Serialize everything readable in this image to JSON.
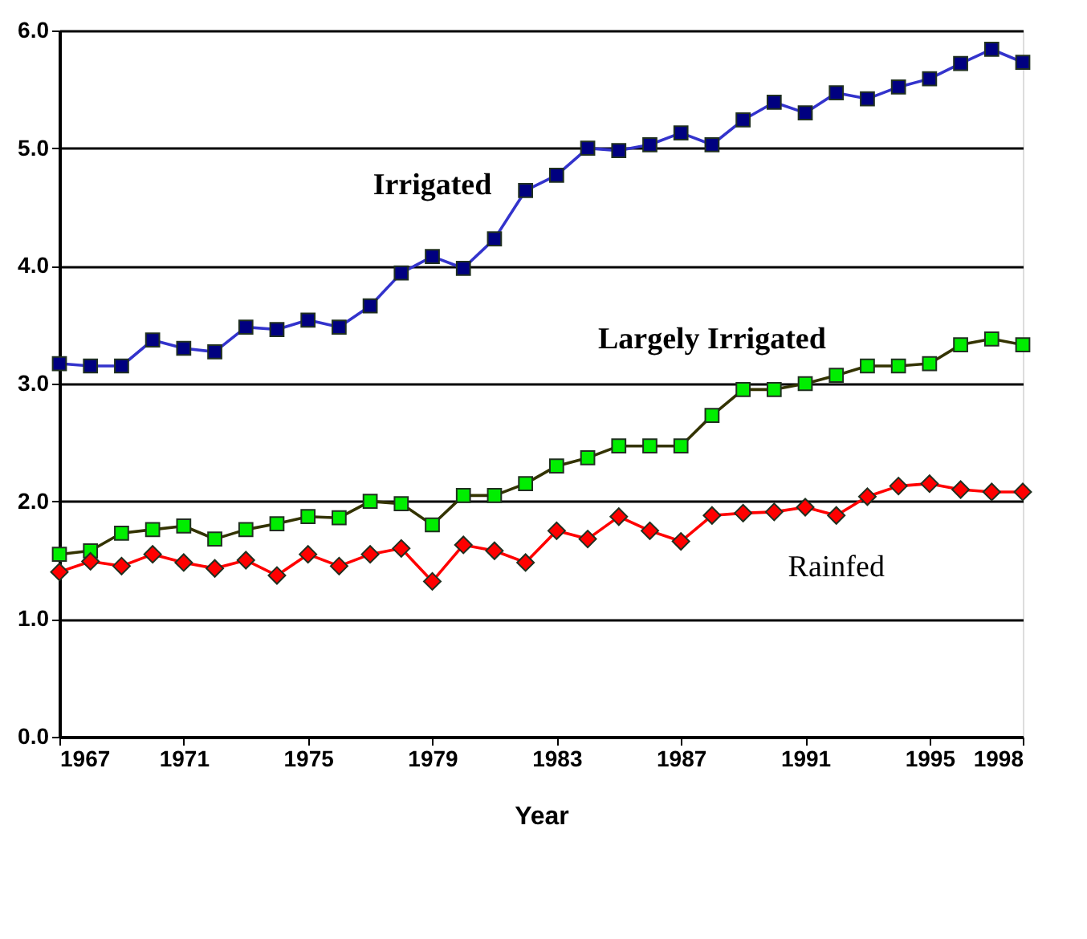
{
  "chart_data": {
    "type": "line",
    "xlabel": "Year",
    "x": [
      1967,
      1968,
      1969,
      1970,
      1971,
      1972,
      1973,
      1974,
      1975,
      1976,
      1977,
      1978,
      1979,
      1980,
      1981,
      1982,
      1983,
      1984,
      1985,
      1986,
      1987,
      1988,
      1989,
      1990,
      1991,
      1992,
      1993,
      1994,
      1995,
      1996,
      1997,
      1998
    ],
    "xlim": [
      1967,
      1998
    ],
    "xticks": [
      1967,
      1971,
      1975,
      1979,
      1983,
      1987,
      1991,
      1995,
      1998
    ],
    "ylim": [
      0,
      6
    ],
    "yticks": [
      {
        "value": 0,
        "label": "0.0"
      },
      {
        "value": 1,
        "label": "1.0"
      },
      {
        "value": 2,
        "label": "2.0"
      },
      {
        "value": 3,
        "label": "3.0"
      },
      {
        "value": 4,
        "label": "4.0"
      },
      {
        "value": 5,
        "label": "5.0"
      },
      {
        "value": 6,
        "label": "6.0"
      }
    ],
    "grid": "y",
    "series": [
      {
        "name": "Irrigated",
        "color": "#000080",
        "marker": "square",
        "values": [
          3.17,
          3.15,
          3.15,
          3.37,
          3.3,
          3.27,
          3.48,
          3.46,
          3.54,
          3.48,
          3.66,
          3.94,
          4.08,
          3.98,
          4.23,
          4.64,
          4.77,
          5.0,
          4.98,
          5.03,
          5.13,
          5.03,
          5.24,
          5.39,
          5.3,
          5.47,
          5.42,
          5.52,
          5.59,
          5.72,
          5.84,
          5.73
        ]
      },
      {
        "name": "Largely Irrigated",
        "color": "#00ee00",
        "marker": "square",
        "values": [
          1.55,
          1.58,
          1.73,
          1.76,
          1.79,
          1.68,
          1.76,
          1.81,
          1.87,
          1.86,
          2.0,
          1.98,
          1.8,
          2.05,
          2.05,
          2.15,
          2.3,
          2.37,
          2.47,
          2.47,
          2.47,
          2.73,
          2.95,
          2.95,
          3.0,
          3.07,
          3.15,
          3.15,
          3.17,
          3.33,
          3.38,
          3.33
        ]
      },
      {
        "name": "Rainfed",
        "color": "#ff0000",
        "marker": "diamond",
        "values": [
          1.4,
          1.49,
          1.45,
          1.55,
          1.48,
          1.43,
          1.5,
          1.37,
          1.55,
          1.45,
          1.55,
          1.6,
          1.32,
          1.63,
          1.58,
          1.48,
          1.75,
          1.68,
          1.87,
          1.75,
          1.66,
          1.88,
          1.9,
          1.91,
          1.95,
          1.88,
          2.04,
          2.13,
          2.15,
          2.1,
          2.08,
          2.08
        ]
      }
    ]
  }
}
